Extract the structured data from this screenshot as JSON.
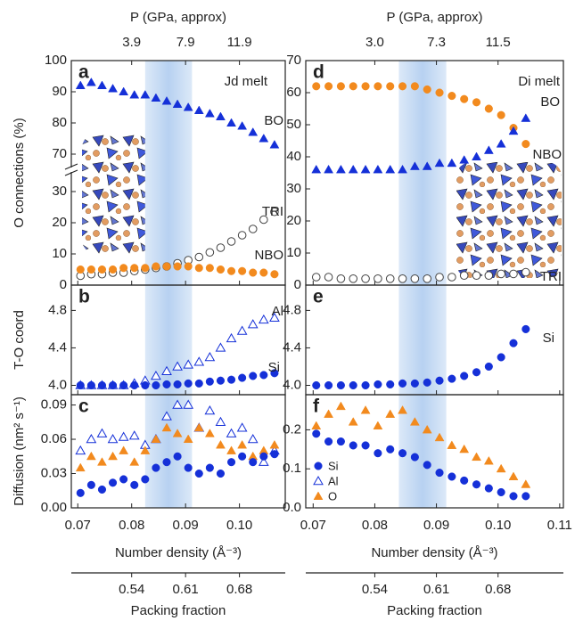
{
  "chart_data": [
    {
      "type": "scatter",
      "xlabel": "Number density (Å⁻³)",
      "xlim": [
        0.0688,
        0.1085
      ],
      "xticks": [
        0.07,
        0.08,
        0.09,
        {
          "value": 0.1,
          "label": "0.10"
        }
      ],
      "top_axis": {
        "label": "P (GPa, approx)",
        "ticks": [
          {
            "value": 0.08,
            "label": "3.9"
          },
          {
            "value": 0.09,
            "label": "7.9"
          },
          {
            "value": 0.1,
            "label": "11.9"
          }
        ]
      },
      "packing_axis": {
        "label": "Packing fraction",
        "ticks": [
          {
            "value": 0.08,
            "label": "0.54"
          },
          {
            "value": 0.09,
            "label": "0.61"
          },
          {
            "value": 0.1,
            "label": "0.68"
          }
        ]
      },
      "shaded_region": [
        0.0825,
        0.0912
      ],
      "x": [
        0.0705,
        0.0725,
        0.0745,
        0.0765,
        0.0785,
        0.0805,
        0.0825,
        0.0845,
        0.0865,
        0.0885,
        0.0905,
        0.0925,
        0.0945,
        0.0965,
        0.0985,
        0.1005,
        0.1025,
        0.1045,
        0.1065
      ],
      "panels": [
        {
          "label": "a",
          "note": "Jd melt",
          "ylabel": "O connections (%)",
          "ylim": [
            0,
            100
          ],
          "ybreak": [
            36,
            66
          ],
          "yticks": [
            0,
            10,
            20,
            30,
            70,
            80,
            90,
            100
          ],
          "series": [
            {
              "name": "BO",
              "color": "#1530d8",
              "marker": "triangle",
              "values": [
                92,
                93,
                92,
                91,
                90,
                89,
                89,
                88,
                87,
                86,
                85,
                84,
                83,
                82,
                80,
                79,
                77,
                75,
                73
              ]
            },
            {
              "name": "TRI",
              "color": "#444444",
              "marker": "open-circle",
              "values": [
                3,
                3.5,
                3.5,
                4,
                4,
                4.5,
                5,
                5.5,
                6,
                7,
                8,
                9,
                10.5,
                12,
                14,
                16,
                18,
                21,
                23.5
              ]
            },
            {
              "name": "NBO",
              "color": "#f28a1e",
              "marker": "circle",
              "values": [
                5,
                5,
                5,
                5,
                5.5,
                5.5,
                5.5,
                6,
                6,
                6,
                6,
                5.5,
                5.5,
                5,
                4.5,
                4.5,
                4,
                4,
                3.5
              ]
            }
          ]
        },
        {
          "label": "b",
          "ylabel": "T-O coord",
          "ylim": [
            3.9,
            5.07
          ],
          "yticks": [
            {
              "value": 4,
              "label": "4.0"
            },
            4.4,
            4.8
          ],
          "series": [
            {
              "name": "Al",
              "color": "#1530d8",
              "marker": "open-triangle",
              "values": [
                4.0,
                4.0,
                4.0,
                4.0,
                4.0,
                4.02,
                4.05,
                4.1,
                4.15,
                4.2,
                4.22,
                4.25,
                4.3,
                4.4,
                4.5,
                4.58,
                4.65,
                4.7,
                4.72
              ]
            },
            {
              "name": "Si",
              "color": "#1530d8",
              "marker": "circle",
              "values": [
                4.0,
                4.0,
                4.0,
                4.0,
                4.0,
                4.0,
                4.0,
                4.0,
                4.01,
                4.01,
                4.02,
                4.02,
                4.04,
                4.05,
                4.06,
                4.08,
                4.1,
                4.11,
                4.13
              ]
            }
          ]
        },
        {
          "label": "c",
          "ylabel": "Diffusion (nm² s⁻¹)",
          "ylim": [
            0,
            0.099
          ],
          "yticks": [
            {
              "value": 0,
              "label": "0.00"
            },
            0.03,
            0.06,
            0.09
          ],
          "series": [
            {
              "color": "#1530d8",
              "marker": "open-triangle",
              "values": [
                0.05,
                0.06,
                0.065,
                0.06,
                0.062,
                0.063,
                0.055,
                0.06,
                0.08,
                0.09,
                0.09,
                0.07,
                0.085,
                0.075,
                0.065,
                0.07,
                0.06,
                0.04,
                0.05
              ]
            },
            {
              "color": "#f28a1e",
              "marker": "triangle",
              "values": [
                0.035,
                0.045,
                0.04,
                0.045,
                0.05,
                0.04,
                0.05,
                0.06,
                0.07,
                0.065,
                0.06,
                0.07,
                0.065,
                0.055,
                0.05,
                0.055,
                0.045,
                0.05,
                0.055
              ]
            },
            {
              "color": "#1530d8",
              "marker": "circle",
              "values": [
                0.013,
                0.02,
                0.016,
                0.022,
                0.025,
                0.02,
                0.025,
                0.035,
                0.04,
                0.045,
                0.035,
                0.03,
                0.035,
                0.03,
                0.04,
                0.045,
                0.04,
                0.045,
                0.047
              ]
            }
          ]
        }
      ]
    },
    {
      "type": "scatter",
      "xlabel": "Number density (Å⁻³)",
      "xlim": [
        0.0688,
        0.1106
      ],
      "xticks": [
        0.07,
        0.08,
        0.09,
        {
          "value": 0.1,
          "label": "0.10"
        },
        0.11
      ],
      "top_axis": {
        "label": "P (GPa, approx)",
        "ticks": [
          {
            "value": 0.08,
            "label": "3.0"
          },
          {
            "value": 0.09,
            "label": "7.3"
          },
          {
            "value": 0.1,
            "label": "11.5"
          }
        ]
      },
      "packing_axis": {
        "label": "Packing fraction",
        "ticks": [
          {
            "value": 0.08,
            "label": "0.54"
          },
          {
            "value": 0.09,
            "label": "0.61"
          },
          {
            "value": 0.1,
            "label": "0.68"
          }
        ]
      },
      "shaded_region": [
        0.0839,
        0.0916
      ],
      "x": [
        0.0705,
        0.0725,
        0.0745,
        0.0765,
        0.0785,
        0.0805,
        0.0825,
        0.0845,
        0.0865,
        0.0885,
        0.0905,
        0.0925,
        0.0945,
        0.0965,
        0.0985,
        0.1005,
        0.1025,
        0.1045
      ],
      "panels": [
        {
          "label": "d",
          "note": "Di melt",
          "ylim": [
            0,
            70
          ],
          "yticks": [
            0,
            10,
            20,
            30,
            40,
            50,
            60,
            70
          ],
          "series": [
            {
              "name": "NBO",
              "color": "#f28a1e",
              "marker": "circle",
              "values": [
                62,
                62,
                62,
                62,
                62,
                62,
                62,
                62,
                62,
                61,
                60,
                59,
                58,
                57,
                55,
                53,
                49,
                44
              ]
            },
            {
              "name": "BO",
              "color": "#1530d8",
              "marker": "triangle",
              "values": [
                36,
                36,
                36,
                36,
                36,
                36,
                36,
                36,
                37,
                37,
                38,
                38,
                39,
                40,
                42,
                44,
                48,
                52
              ]
            },
            {
              "name": "TRI",
              "color": "#444444",
              "marker": "open-circle",
              "values": [
                2.5,
                2.5,
                2,
                2,
                2,
                2,
                2,
                2,
                2,
                2,
                2.5,
                2.5,
                3,
                3,
                3,
                3.5,
                3.5,
                4
              ]
            }
          ]
        },
        {
          "label": "e",
          "ylim": [
            3.9,
            5.07
          ],
          "yticks": [
            {
              "value": 4,
              "label": "4.0"
            },
            4.4,
            4.8
          ],
          "series": [
            {
              "name": "Si",
              "color": "#1530d8",
              "marker": "circle",
              "values": [
                4.0,
                4.0,
                4.0,
                4.0,
                4.0,
                4.01,
                4.01,
                4.02,
                4.02,
                4.03,
                4.05,
                4.07,
                4.1,
                4.14,
                4.2,
                4.3,
                4.45,
                4.6
              ]
            }
          ]
        },
        {
          "label": "f",
          "ylim": [
            0,
            0.29
          ],
          "yticks": [
            {
              "value": 0,
              "label": "0.0"
            },
            0.1,
            0.2
          ],
          "series": [
            {
              "color": "#f28a1e",
              "marker": "triangle",
              "values": [
                0.21,
                0.24,
                0.26,
                0.22,
                0.25,
                0.21,
                0.24,
                0.25,
                0.22,
                0.2,
                0.18,
                0.16,
                0.15,
                0.13,
                0.12,
                0.1,
                0.08,
                0.06
              ]
            },
            {
              "color": "#1530d8",
              "marker": "circle",
              "values": [
                0.19,
                0.17,
                0.17,
                0.16,
                0.16,
                0.14,
                0.15,
                0.14,
                0.13,
                0.11,
                0.09,
                0.08,
                0.07,
                0.06,
                0.05,
                0.04,
                0.03,
                0.03
              ]
            }
          ],
          "legend": [
            {
              "name": "Si",
              "color": "#1530d8",
              "marker": "circle"
            },
            {
              "name": "Al",
              "color": "#1530d8",
              "marker": "open-triangle"
            },
            {
              "name": "O",
              "color": "#f28a1e",
              "marker": "triangle"
            }
          ]
        }
      ]
    }
  ]
}
